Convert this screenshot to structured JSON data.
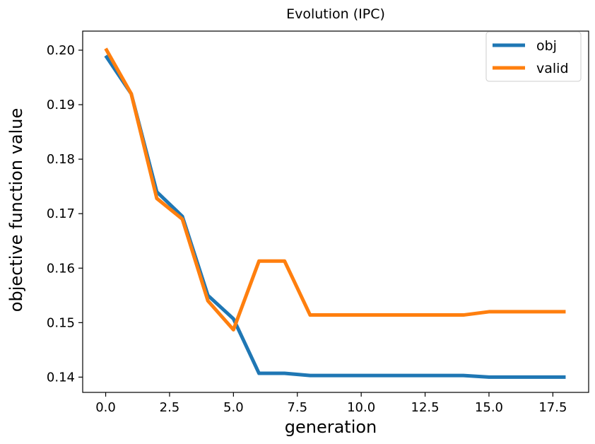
{
  "chart_data": {
    "type": "line",
    "title": "Evolution (IPC)",
    "xlabel": "generation",
    "ylabel": "objective function value",
    "xlim": [
      -0.9,
      18.9
    ],
    "ylim": [
      0.1372,
      0.2035
    ],
    "xticks": [
      0.0,
      2.5,
      5.0,
      7.5,
      10.0,
      12.5,
      15.0,
      17.5
    ],
    "xtick_labels": [
      "0.0",
      "2.5",
      "5.0",
      "7.5",
      "10.0",
      "12.5",
      "15.0",
      "17.5"
    ],
    "yticks": [
      0.14,
      0.15,
      0.16,
      0.17,
      0.18,
      0.19,
      0.2
    ],
    "ytick_labels": [
      "0.14",
      "0.15",
      "0.16",
      "0.17",
      "0.18",
      "0.19",
      "0.20"
    ],
    "grid": false,
    "legend_position": "top-right",
    "series": [
      {
        "name": "obj",
        "color": "#1f77b4",
        "x": [
          0,
          1,
          2,
          3,
          4,
          5,
          6,
          7,
          8,
          9,
          10,
          11,
          12,
          13,
          14,
          15,
          16,
          17,
          18
        ],
        "y": [
          0.199,
          0.192,
          0.174,
          0.1695,
          0.155,
          0.1507,
          0.1407,
          0.1407,
          0.1403,
          0.1403,
          0.1403,
          0.1403,
          0.1403,
          0.1403,
          0.1403,
          0.14,
          0.14,
          0.14,
          0.14
        ]
      },
      {
        "name": "valid",
        "color": "#ff7f0e",
        "x": [
          0,
          1,
          2,
          3,
          4,
          5,
          6,
          7,
          8,
          9,
          10,
          11,
          12,
          13,
          14,
          15,
          16,
          17,
          18
        ],
        "y": [
          0.2003,
          0.192,
          0.1728,
          0.169,
          0.154,
          0.1487,
          0.1613,
          0.1613,
          0.1514,
          0.1514,
          0.1514,
          0.1514,
          0.1514,
          0.1514,
          0.1514,
          0.152,
          0.152,
          0.152,
          0.152
        ]
      }
    ]
  }
}
